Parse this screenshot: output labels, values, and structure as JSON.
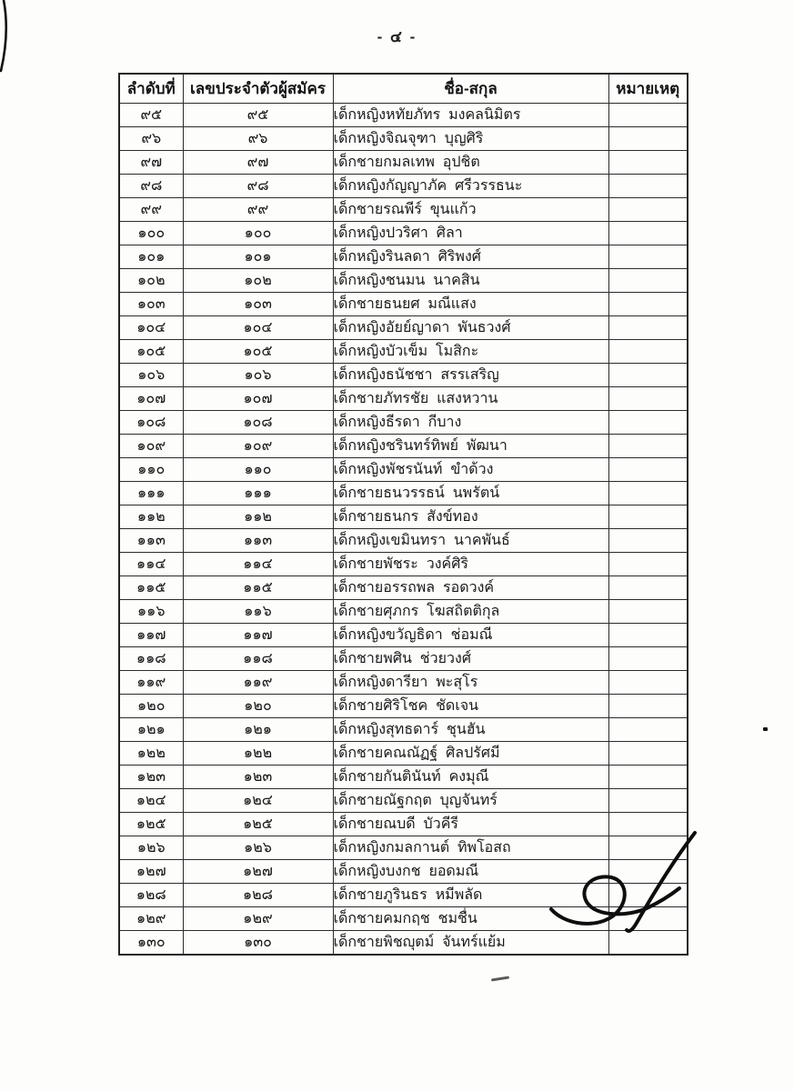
{
  "page": {
    "number_label": "- ๔ -"
  },
  "table": {
    "headers": [
      "ลำดับที่",
      "เลขประจำตัวผู้สมัคร",
      "ชื่อ-สกุล",
      "หมายเหตุ"
    ],
    "rows": [
      {
        "no": "๙๕",
        "id": "๙๕",
        "name": "เด็กหญิงหทัยภัทร  มงคลนิมิตร",
        "note": ""
      },
      {
        "no": "๙๖",
        "id": "๙๖",
        "name": "เด็กหญิงจิณจุฑา  บุญศิริ",
        "note": ""
      },
      {
        "no": "๙๗",
        "id": "๙๗",
        "name": "เด็กชายกมลเทพ  อุปชิต",
        "note": ""
      },
      {
        "no": "๙๘",
        "id": "๙๘",
        "name": "เด็กหญิงกัญญาภัค  ศรีวรรธนะ",
        "note": ""
      },
      {
        "no": "๙๙",
        "id": "๙๙",
        "name": "เด็กชายรณพีร์  ขุนแก้ว",
        "note": ""
      },
      {
        "no": "๑๐๐",
        "id": "๑๐๐",
        "name": "เด็กหญิงปวริศา  ศิลา",
        "note": ""
      },
      {
        "no": "๑๐๑",
        "id": "๑๐๑",
        "name": "เด็กหญิงรินลดา  ศิริพงศ์",
        "note": ""
      },
      {
        "no": "๑๐๒",
        "id": "๑๐๒",
        "name": "เด็กหญิงชนมน  นาคสิน",
        "note": ""
      },
      {
        "no": "๑๐๓",
        "id": "๑๐๓",
        "name": "เด็กชายธนยศ  มณีแสง",
        "note": ""
      },
      {
        "no": "๑๐๔",
        "id": "๑๐๔",
        "name": "เด็กหญิงอัยย์ญาดา  พันธวงศ์",
        "note": ""
      },
      {
        "no": "๑๐๕",
        "id": "๑๐๕",
        "name": "เด็กหญิงบัวเข็ม  โมสิกะ",
        "note": ""
      },
      {
        "no": "๑๐๖",
        "id": "๑๐๖",
        "name": "เด็กหญิงธนัชชา  สรรเสริญ",
        "note": ""
      },
      {
        "no": "๑๐๗",
        "id": "๑๐๗",
        "name": "เด็กชายภัทรชัย  แสงหวาน",
        "note": ""
      },
      {
        "no": "๑๐๘",
        "id": "๑๐๘",
        "name": "เด็กหญิงธีรดา  กีบาง",
        "note": ""
      },
      {
        "no": "๑๐๙",
        "id": "๑๐๙",
        "name": "เด็กหญิงชรินทร์ทิพย์  พัฒนา",
        "note": ""
      },
      {
        "no": "๑๑๐",
        "id": "๑๑๐",
        "name": "เด็กหญิงพัชรนันท์  ขำด้วง",
        "note": ""
      },
      {
        "no": "๑๑๑",
        "id": "๑๑๑",
        "name": "เด็กชายธนวรรธน์  นพรัตน์",
        "note": ""
      },
      {
        "no": "๑๑๒",
        "id": "๑๑๒",
        "name": "เด็กชายธนกร  สังข์ทอง",
        "note": ""
      },
      {
        "no": "๑๑๓",
        "id": "๑๑๓",
        "name": "เด็กหญิงเขมินทรา  นาคพันธ์",
        "note": ""
      },
      {
        "no": "๑๑๔",
        "id": "๑๑๔",
        "name": "เด็กชายพัชระ  วงค์ศิริ",
        "note": ""
      },
      {
        "no": "๑๑๕",
        "id": "๑๑๕",
        "name": "เด็กชายอรรถพล  รอดวงค์",
        "note": ""
      },
      {
        "no": "๑๑๖",
        "id": "๑๑๖",
        "name": "เด็กชายศุภกร  โฆสถิตติกุล",
        "note": ""
      },
      {
        "no": "๑๑๗",
        "id": "๑๑๗",
        "name": "เด็กหญิงขวัญธิดา  ช่อมณี",
        "note": ""
      },
      {
        "no": "๑๑๘",
        "id": "๑๑๘",
        "name": "เด็กชายพศิน  ช่วยวงศ์",
        "note": ""
      },
      {
        "no": "๑๑๙",
        "id": "๑๑๙",
        "name": "เด็กหญิงดารียา  พะสุโร",
        "note": ""
      },
      {
        "no": "๑๒๐",
        "id": "๑๒๐",
        "name": "เด็กชายศิริโชค  ชัดเจน",
        "note": ""
      },
      {
        "no": "๑๒๑",
        "id": "๑๒๑",
        "name": "เด็กหญิงสุทธดาร์  ชุนฮัน",
        "note": ""
      },
      {
        "no": "๑๒๒",
        "id": "๑๒๒",
        "name": "เด็กชายคณณัฏฐ์  ศิลปรัศมี",
        "note": ""
      },
      {
        "no": "๑๒๓",
        "id": "๑๒๓",
        "name": "เด็กชายกันตินันท์  คงมุณี",
        "note": ""
      },
      {
        "no": "๑๒๔",
        "id": "๑๒๔",
        "name": "เด็กชายณัฐกฤต  บุญจันทร์",
        "note": ""
      },
      {
        "no": "๑๒๕",
        "id": "๑๒๕",
        "name": "เด็กชายณบดี  บัวคีรี",
        "note": ""
      },
      {
        "no": "๑๒๖",
        "id": "๑๒๖",
        "name": "เด็กหญิงกมลกานต์  ทิพโอสถ",
        "note": ""
      },
      {
        "no": "๑๒๗",
        "id": "๑๒๗",
        "name": "เด็กหญิงบงกช  ยอดมณี",
        "note": ""
      },
      {
        "no": "๑๒๘",
        "id": "๑๒๘",
        "name": "เด็กชายภูรินธร  หมีพลัด",
        "note": ""
      },
      {
        "no": "๑๒๙",
        "id": "๑๒๙",
        "name": "เด็กชายคมกฤช  ชมชื่น",
        "note": ""
      },
      {
        "no": "๑๓๐",
        "id": "๑๓๐",
        "name": "เด็กชายพิชญุตม์  จันทร์แย้ม",
        "note": ""
      }
    ]
  },
  "colors": {
    "ink": "#1c1c1c",
    "paper": "#fdfdfc",
    "border": "#2b2b2b"
  }
}
